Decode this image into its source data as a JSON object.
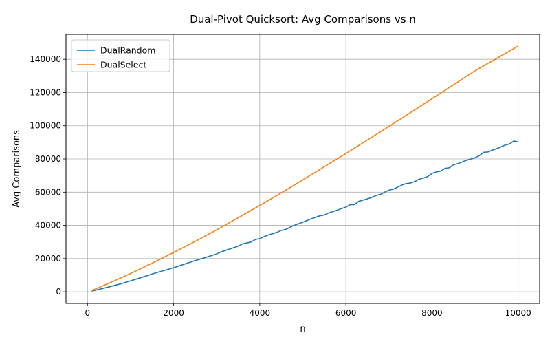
{
  "chart_data": {
    "type": "line",
    "title": "Dual-Pivot Quicksort: Avg Comparisons vs n",
    "xlabel": "n",
    "ylabel": "Avg Comparisons",
    "xlim": [
      -500,
      10500
    ],
    "ylim": [
      -7000,
      155000
    ],
    "xticks": [
      0,
      2000,
      4000,
      6000,
      8000,
      10000
    ],
    "yticks": [
      0,
      20000,
      40000,
      60000,
      80000,
      100000,
      120000,
      140000
    ],
    "grid": true,
    "legend_position": "top-left",
    "series": [
      {
        "name": "DualRandom",
        "color": "#1f77b4",
        "x": [
          100,
          400,
          800,
          1200,
          1600,
          2000,
          2500,
          2600,
          3000,
          3100,
          3500,
          3600,
          3800,
          3900,
          4000,
          4100,
          4200,
          4400,
          4500,
          4600,
          4700,
          4800,
          5000,
          5200,
          5400,
          5500,
          5600,
          5800,
          6000,
          6100,
          6200,
          6300,
          6400,
          6600,
          6700,
          6800,
          6900,
          7000,
          7100,
          7200,
          7300,
          7400,
          7500,
          7600,
          7700,
          7800,
          7900,
          8000,
          8100,
          8200,
          8300,
          8400,
          8500,
          8600,
          8700,
          8800,
          9000,
          9100,
          9200,
          9300,
          9400,
          9500,
          9600,
          9700,
          9800,
          9900,
          10000
        ],
        "y": [
          400,
          2300,
          5000,
          8200,
          11500,
          14500,
          18800,
          19500,
          22800,
          24000,
          27500,
          28800,
          30000,
          31500,
          32000,
          33200,
          34200,
          35800,
          37000,
          37500,
          38800,
          40000,
          41900,
          44000,
          45800,
          46200,
          47500,
          49200,
          51000,
          52500,
          52500,
          54500,
          55200,
          56800,
          58000,
          58600,
          60000,
          61200,
          61800,
          63000,
          64300,
          65200,
          65500,
          66400,
          67800,
          68500,
          69400,
          71300,
          72200,
          72600,
          74300,
          74700,
          76500,
          77200,
          78200,
          79200,
          80700,
          82000,
          84000,
          84200,
          85300,
          86200,
          87200,
          88400,
          89000,
          90800,
          90200
        ]
      },
      {
        "name": "DualSelect",
        "color": "#ff7f0e",
        "x": [
          100,
          500,
          1000,
          1500,
          2000,
          2500,
          3000,
          3500,
          4000,
          4500,
          5000,
          5500,
          6000,
          6500,
          7000,
          7500,
          8000,
          8500,
          9000,
          9500,
          10000
        ],
        "y": [
          700,
          5200,
          11000,
          17200,
          23700,
          30300,
          37300,
          44600,
          52000,
          59600,
          67400,
          75300,
          83300,
          91400,
          99600,
          107900,
          116300,
          124700,
          133100,
          140500,
          148000
        ]
      }
    ]
  }
}
